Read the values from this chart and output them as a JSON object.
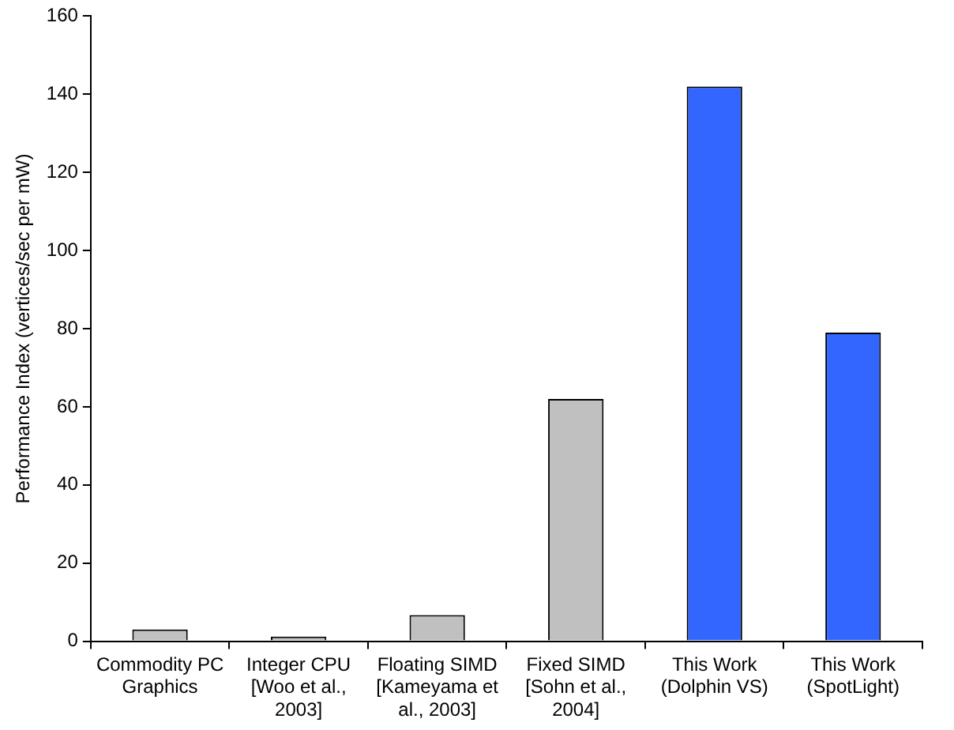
{
  "chart_data": {
    "type": "bar",
    "ylabel": "Performance Index (vertices/sec per mW)",
    "categories": [
      "Commodity PC Graphics",
      "Integer CPU [Woo et al., 2003]",
      "Floating SIMD [Kameyama et al., 2003]",
      "Fixed SIMD [Sohn et al., 2004]",
      "This Work (Dolphin VS)",
      "This Work (SpotLight)"
    ],
    "values": [
      3,
      1.2,
      6.7,
      62,
      142,
      79
    ],
    "colors": [
      "#c0c0c0",
      "#c0c0c0",
      "#c0c0c0",
      "#c0c0c0",
      "#3366ff",
      "#3366ff"
    ],
    "ylim": [
      0,
      160
    ],
    "yticks": [
      0,
      20,
      40,
      60,
      80,
      100,
      120,
      140,
      160
    ],
    "grid": false,
    "legend": false
  }
}
